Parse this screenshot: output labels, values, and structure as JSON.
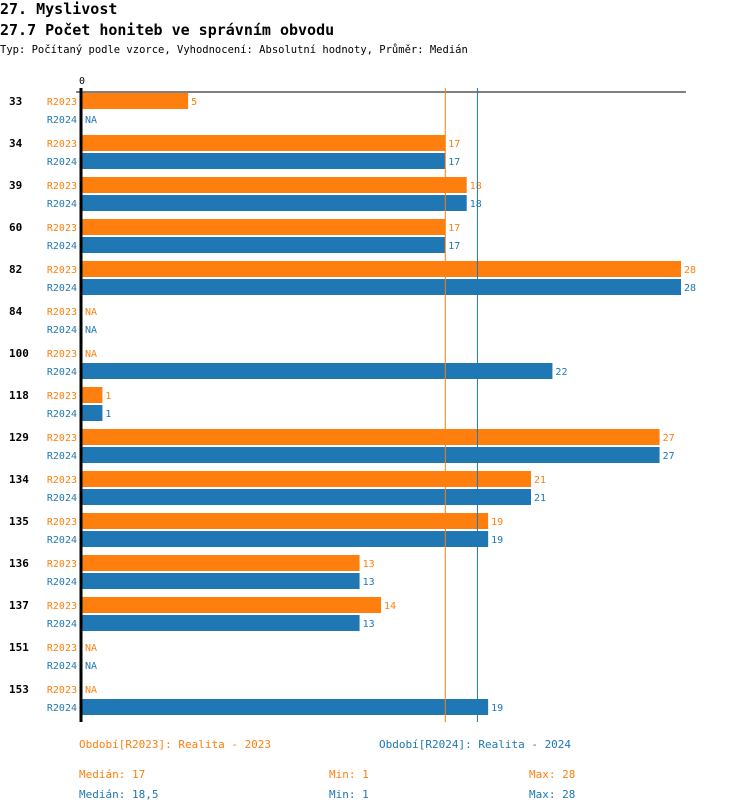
{
  "header": {
    "title": "27. Myslivost",
    "subtitle": "27.7 Počet honiteb ve správním obvodu",
    "info": "Typ: Počítaný podle vzorce, Vyhodnocení: Absolutní hodnoty, Průměr: Medián"
  },
  "chart_data": {
    "type": "bar",
    "orientation": "horizontal",
    "xlim": [
      0,
      28
    ],
    "x_tick_labels": [
      "0"
    ],
    "categories": [
      "33",
      "34",
      "39",
      "60",
      "82",
      "84",
      "100",
      "118",
      "129",
      "134",
      "135",
      "136",
      "137",
      "151",
      "153"
    ],
    "series": [
      {
        "name": "R2023",
        "color": "#ff7f0e",
        "values": [
          5,
          17,
          18,
          17,
          28,
          null,
          null,
          1,
          27,
          21,
          19,
          13,
          14,
          null,
          null
        ]
      },
      {
        "name": "R2024",
        "color": "#1f77b4",
        "values": [
          null,
          17,
          18,
          17,
          28,
          null,
          22,
          1,
          27,
          21,
          19,
          13,
          13,
          null,
          19
        ]
      }
    ],
    "missing_label": "NA",
    "median_lines": [
      {
        "series": "R2023",
        "value": 17
      },
      {
        "series": "R2024",
        "value": 18.5
      }
    ]
  },
  "legend": [
    {
      "label": "Období[R2023]: Realita - 2023",
      "median": "Medián: 17",
      "min": "Min: 1",
      "max": "Max: 28"
    },
    {
      "label": "Období[R2024]: Realita - 2024",
      "median": "Medián: 18,5",
      "min": "Min: 1",
      "max": "Max: 28"
    }
  ]
}
